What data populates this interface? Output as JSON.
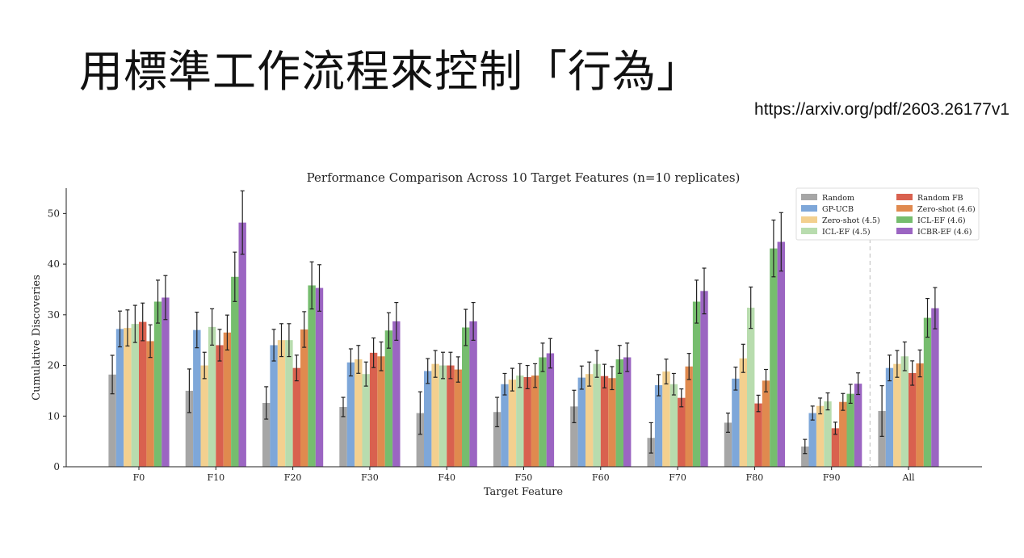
{
  "slide": {
    "title": "用標準工作流程來控制「行為」",
    "source_url": "https://arxiv.org/pdf/2603.26177v1"
  },
  "chart_data": {
    "type": "bar",
    "title": "Performance Comparison Across 10 Target Features (n=10 replicates)",
    "xlabel": "Target Feature",
    "ylabel": "Cumulative Discoveries",
    "ylim": [
      0,
      55
    ],
    "yticks": [
      0,
      10,
      20,
      30,
      40,
      50
    ],
    "grid": false,
    "legend_position": "top-right",
    "categories": [
      "F0",
      "F10",
      "F20",
      "F30",
      "F40",
      "F50",
      "F60",
      "F70",
      "F80",
      "F90",
      "All"
    ],
    "separator_after": "F90",
    "series": [
      {
        "name": "Random",
        "color": "#a6a6a6",
        "values": [
          18.2,
          15.0,
          12.6,
          11.8,
          10.6,
          10.8,
          11.9,
          5.7,
          8.7,
          4.0,
          11.0
        ],
        "errors": [
          3.8,
          4.3,
          3.2,
          1.9,
          4.2,
          2.9,
          3.2,
          3.0,
          1.9,
          1.4,
          5.0
        ]
      },
      {
        "name": "GP-UCB",
        "color": "#7ea7d9",
        "values": [
          27.2,
          27.0,
          24.0,
          20.6,
          18.9,
          16.3,
          17.6,
          16.1,
          17.4,
          10.6,
          19.5
        ]
      },
      {
        "name": "Zero-shot (4.5)",
        "color": "#f3d08f",
        "values": [
          27.4,
          20.0,
          25.0,
          21.2,
          20.3,
          17.2,
          18.3,
          18.8,
          21.4,
          12.0,
          20.3
        ]
      },
      {
        "name": "ICL-EF (4.5)",
        "color": "#b8dcae",
        "values": [
          28.2,
          27.6,
          25.0,
          18.3,
          20.0,
          18.0,
          20.3,
          16.3,
          31.4,
          12.9,
          21.8
        ]
      },
      {
        "name": "Random FB",
        "color": "#d9614f",
        "values": [
          28.6,
          24.0,
          19.5,
          22.5,
          20.0,
          17.7,
          17.9,
          13.6,
          12.5,
          7.6,
          18.5
        ]
      },
      {
        "name": "Zero-shot (4.6)",
        "color": "#e08a4f",
        "values": [
          24.8,
          26.5,
          27.1,
          21.8,
          19.2,
          18.0,
          17.5,
          19.8,
          17.0,
          12.8,
          20.4
        ]
      },
      {
        "name": "ICL-EF (4.6)",
        "color": "#76bd6e",
        "values": [
          32.6,
          37.5,
          35.8,
          26.9,
          27.5,
          21.6,
          21.2,
          32.6,
          43.1,
          14.4,
          29.4
        ]
      },
      {
        "name": "ICBR-EF (4.6)",
        "color": "#9b65c2",
        "values": [
          33.4,
          48.2,
          35.3,
          28.7,
          28.7,
          22.4,
          21.6,
          34.7,
          44.4,
          16.4,
          31.3
        ]
      }
    ],
    "legend_columns": [
      [
        "Random",
        "GP-UCB",
        "Zero-shot (4.5)",
        "ICL-EF (4.5)"
      ],
      [
        "Random FB",
        "Zero-shot (4.6)",
        "ICL-EF (4.6)",
        "ICBR-EF (4.6)"
      ]
    ]
  }
}
